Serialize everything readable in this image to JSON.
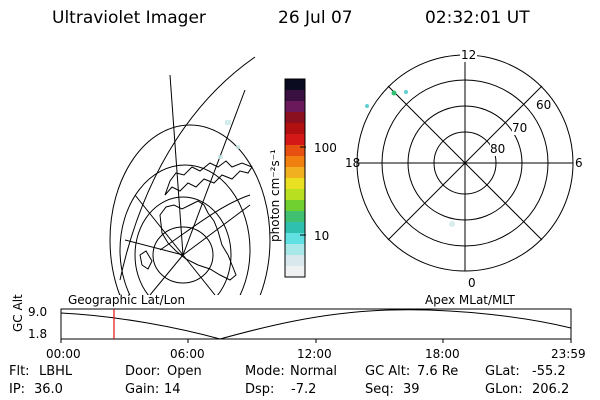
{
  "header": {
    "instrument": "Ultraviolet Imager",
    "date": "26 Jul 07",
    "time": "02:32:01 UT"
  },
  "colorbar": {
    "unit_label": "photon cm⁻²s⁻¹",
    "tick_labels": [
      "100",
      "10"
    ],
    "colors": [
      "#0a0a20",
      "#3a1040",
      "#6a1a5a",
      "#8a1020",
      "#b01010",
      "#d41818",
      "#e65010",
      "#f08010",
      "#f0b020",
      "#e8e020",
      "#b8e020",
      "#70d030",
      "#40c070",
      "#30c0b0",
      "#60e0e0",
      "#a8e8e8",
      "#d8e8ec",
      "#eef0f2"
    ]
  },
  "polar_plot": {
    "mlt_labels": {
      "top": "12",
      "right": "6",
      "bottom": "0",
      "left": "18"
    },
    "lat_labels": [
      "60",
      "70",
      "80"
    ]
  },
  "geo_panel": {
    "label": "Geographic Lat/Lon"
  },
  "apex_panel": {
    "label": "Apex MLat/MLT"
  },
  "altitude_plot": {
    "ylabel": "GC Alt",
    "y_ticks": [
      "9.0",
      "1.8"
    ],
    "x_ticks": [
      "00:00",
      "06:00",
      "12:00",
      "18:00",
      "23:59"
    ],
    "marker_time": "02:32",
    "marker_color": "#e01010"
  },
  "info": {
    "filter_label": "Flt:",
    "filter_value": "LBHL",
    "ip_label": "IP:",
    "ip_value": "36.0",
    "door_label": "Door:",
    "door_value": "Open",
    "gain_label": "Gain:",
    "gain_value": "14",
    "mode_label": "Mode:",
    "mode_value": "Normal",
    "dsp_label": "Dsp:",
    "dsp_value": "-7.2",
    "gcalt_label": "GC Alt:",
    "gcalt_value": "7.6 Re",
    "seq_label": "Seq:",
    "seq_value": "39",
    "glat_label": "GLat:",
    "glat_value": "-55.2",
    "glon_label": "GLon:",
    "glon_value": "206.2"
  }
}
